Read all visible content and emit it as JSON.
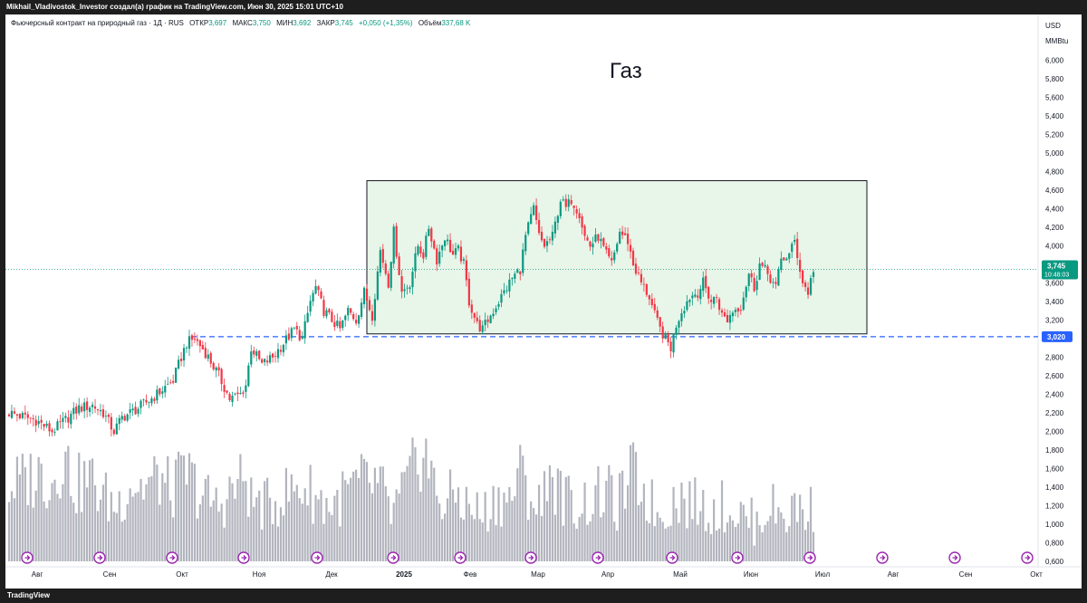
{
  "header": {
    "attribution": "Mikhail_Vladivostok_Investor создал(а) график на TradingView.com, Июн 30, 2025 15:01 UTC+10"
  },
  "legend": {
    "symbol": "Фьючерсный контракт на природный газ · 1Д · RUS",
    "open_label": "ОТКР",
    "open": "3,697",
    "high_label": "МАКС",
    "high": "3,750",
    "low_label": "МИН",
    "low": "3,692",
    "close_label": "ЗАКР",
    "close": "3,745",
    "change": "+0,050 (+1,35%)",
    "volume_label": "Объём",
    "volume": "337,68 K"
  },
  "annotation": "Газ",
  "footer": {
    "logo": "TradingView"
  },
  "colors": {
    "up": "#089981",
    "down": "#f23645",
    "volume": "#b2b5be",
    "box_fill": "#e8f5e9",
    "box_stroke": "#131722",
    "support_line": "#2962ff",
    "price_tag": "#089981",
    "support_tag": "#2962ff",
    "event_icon": "#9c27b0"
  },
  "chart_data": {
    "type": "candlestick",
    "unit_label": "USD",
    "unit_sub": "MMBtu",
    "y_ticks": [
      "6,000",
      "5,800",
      "5,600",
      "5,400",
      "5,200",
      "5,000",
      "4,800",
      "4,600",
      "4,400",
      "4,200",
      "4,000",
      "3,800",
      "3,600",
      "3,400",
      "3,200",
      "3,000",
      "2,800",
      "2,600",
      "2,400",
      "2,200",
      "2,000",
      "1,800",
      "1,600",
      "1,400",
      "1,200",
      "1,000",
      "0,800",
      "0,600"
    ],
    "ylim": [
      0.6,
      6.1
    ],
    "x_labels": [
      "Авг",
      "Сен",
      "Окт",
      "Ноя",
      "Дек",
      "2025",
      "Фев",
      "Мар",
      "Апр",
      "Май",
      "Июн",
      "Июл",
      "Авг",
      "Сен",
      "Окт"
    ],
    "last_price": "3,745",
    "countdown": "10:48:03",
    "support_level_label": "3,020",
    "support_level": 3.02,
    "range_box": {
      "price_high": 4.7,
      "price_low": 3.05
    },
    "events_count": 15,
    "price_anchors": [
      [
        0,
        2.2
      ],
      [
        10,
        2.12
      ],
      [
        16,
        2.0
      ],
      [
        20,
        2.1
      ],
      [
        26,
        2.25
      ],
      [
        31,
        2.28
      ],
      [
        35,
        2.2
      ],
      [
        39,
        2.0
      ],
      [
        42,
        2.15
      ],
      [
        48,
        2.25
      ],
      [
        55,
        2.4
      ],
      [
        61,
        2.55
      ],
      [
        64,
        2.8
      ],
      [
        66,
        2.95
      ],
      [
        69,
        3.0
      ],
      [
        73,
        2.85
      ],
      [
        78,
        2.6
      ],
      [
        82,
        2.35
      ],
      [
        86,
        2.4
      ],
      [
        88,
        2.5
      ],
      [
        90,
        2.9
      ],
      [
        94,
        2.72
      ],
      [
        98,
        2.8
      ],
      [
        102,
        2.95
      ],
      [
        106,
        3.1
      ],
      [
        109,
        3.0
      ],
      [
        112,
        3.4
      ],
      [
        114,
        3.55
      ],
      [
        117,
        3.3
      ],
      [
        120,
        3.2
      ],
      [
        123,
        3.1
      ],
      [
        126,
        3.3
      ],
      [
        129,
        3.2
      ],
      [
        132,
        3.5
      ],
      [
        135,
        3.25
      ],
      [
        138,
        3.95
      ],
      [
        141,
        3.6
      ],
      [
        143,
        4.15
      ],
      [
        146,
        3.5
      ],
      [
        149,
        3.6
      ],
      [
        152,
        4.0
      ],
      [
        154,
        3.9
      ],
      [
        156,
        4.2
      ],
      [
        159,
        3.85
      ],
      [
        162,
        4.1
      ],
      [
        165,
        3.9
      ],
      [
        167,
        3.95
      ],
      [
        169,
        3.8
      ],
      [
        171,
        3.4
      ],
      [
        174,
        3.15
      ],
      [
        176,
        3.1
      ],
      [
        178,
        3.2
      ],
      [
        181,
        3.35
      ],
      [
        184,
        3.5
      ],
      [
        187,
        3.65
      ],
      [
        190,
        3.75
      ],
      [
        192,
        4.1
      ],
      [
        195,
        4.4
      ],
      [
        197,
        4.1
      ],
      [
        199,
        4.0
      ],
      [
        202,
        4.1
      ],
      [
        205,
        4.5
      ],
      [
        207,
        4.4
      ],
      [
        209,
        4.5
      ],
      [
        212,
        4.35
      ],
      [
        214,
        4.1
      ],
      [
        216,
        4.0
      ],
      [
        219,
        4.1
      ],
      [
        222,
        3.9
      ],
      [
        224,
        3.8
      ],
      [
        227,
        4.15
      ],
      [
        230,
        4.05
      ],
      [
        232,
        3.8
      ],
      [
        235,
        3.6
      ],
      [
        238,
        3.45
      ],
      [
        240,
        3.25
      ],
      [
        242,
        3.1
      ],
      [
        245,
        2.95
      ],
      [
        246,
        2.9
      ],
      [
        248,
        3.15
      ],
      [
        250,
        3.3
      ],
      [
        253,
        3.45
      ],
      [
        256,
        3.5
      ],
      [
        258,
        3.6
      ],
      [
        261,
        3.4
      ],
      [
        263,
        3.45
      ],
      [
        265,
        3.25
      ],
      [
        267,
        3.2
      ],
      [
        269,
        3.3
      ],
      [
        272,
        3.35
      ],
      [
        275,
        3.7
      ],
      [
        277,
        3.55
      ],
      [
        279,
        3.8
      ],
      [
        282,
        3.7
      ],
      [
        285,
        3.55
      ],
      [
        287,
        3.85
      ],
      [
        290,
        3.9
      ],
      [
        292,
        4.05
      ],
      [
        295,
        3.6
      ],
      [
        297,
        3.5
      ],
      [
        299,
        3.75
      ]
    ],
    "volume_anchors": [
      [
        0,
        1.4
      ],
      [
        12,
        1.55
      ],
      [
        16,
        1.45
      ],
      [
        20,
        1.75
      ],
      [
        25,
        1.4
      ],
      [
        30,
        1.5
      ],
      [
        35,
        1.3
      ],
      [
        40,
        1.2
      ],
      [
        45,
        1.45
      ],
      [
        50,
        1.4
      ],
      [
        56,
        1.5
      ],
      [
        60,
        1.35
      ],
      [
        66,
        1.55
      ],
      [
        72,
        1.3
      ],
      [
        78,
        1.2
      ],
      [
        84,
        1.4
      ],
      [
        88,
        1.5
      ],
      [
        90,
        1.25
      ],
      [
        96,
        1.2
      ],
      [
        104,
        1.35
      ],
      [
        110,
        1.4
      ],
      [
        116,
        1.25
      ],
      [
        120,
        1.2
      ],
      [
        126,
        1.35
      ],
      [
        132,
        1.45
      ],
      [
        138,
        1.4
      ],
      [
        142,
        1.1
      ],
      [
        146,
        1.3
      ],
      [
        150,
        1.55
      ],
      [
        154,
        1.85
      ],
      [
        158,
        1.4
      ],
      [
        162,
        1.2
      ],
      [
        166,
        1.35
      ],
      [
        170,
        1.2
      ],
      [
        176,
        1.1
      ],
      [
        182,
        1.3
      ],
      [
        186,
        1.25
      ],
      [
        190,
        1.55
      ],
      [
        194,
        1.3
      ],
      [
        198,
        1.15
      ],
      [
        200,
        1.65
      ],
      [
        204,
        1.35
      ],
      [
        210,
        1.2
      ],
      [
        216,
        1.25
      ],
      [
        222,
        1.35
      ],
      [
        226,
        1.2
      ],
      [
        232,
        1.55
      ],
      [
        238,
        1.25
      ],
      [
        242,
        1.1
      ],
      [
        248,
        1.3
      ],
      [
        256,
        1.2
      ],
      [
        262,
        1.15
      ],
      [
        266,
        1.2
      ],
      [
        272,
        1.1
      ],
      [
        278,
        1.0
      ],
      [
        282,
        1.2
      ],
      [
        288,
        1.1
      ],
      [
        294,
        1.2
      ],
      [
        297,
        1.1
      ],
      [
        299,
        1.2
      ]
    ]
  }
}
